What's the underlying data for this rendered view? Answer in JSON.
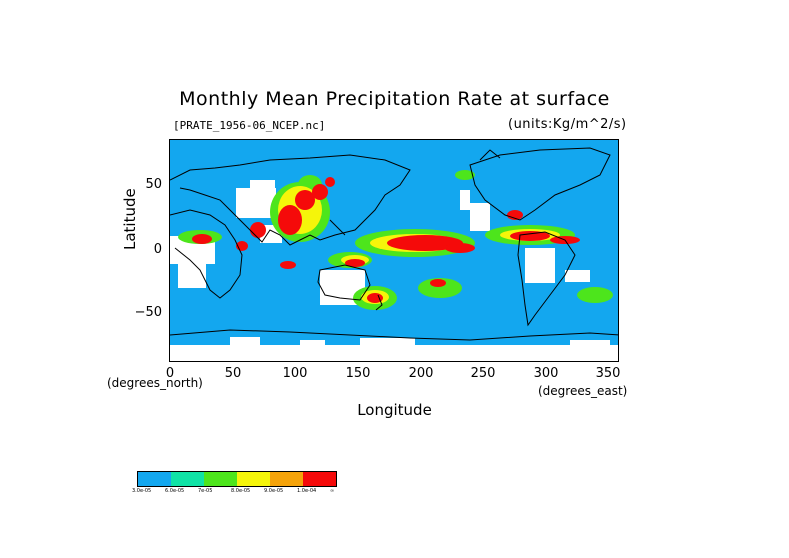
{
  "title": "Monthly Mean Precipitation Rate at surface",
  "file_label": "[PRATE_1956-06_NCEP.nc]",
  "units_label": "(units:Kg/m^2/s)",
  "axes": {
    "ylabel": "Latitude",
    "xlabel": "Longitude",
    "y_unit": "(degrees_north)",
    "x_unit": "(degrees_east)",
    "y_ticks": [
      "50",
      "0",
      "−50"
    ],
    "x_ticks": [
      "0",
      "50",
      "100",
      "150",
      "200",
      "250",
      "300",
      "350"
    ],
    "lon_range": [
      0,
      360
    ],
    "lat_range": [
      -90,
      90
    ]
  },
  "colorbar": {
    "colors": [
      "#13a7ef",
      "#10e3a6",
      "#4de51c",
      "#f5f50a",
      "#f5a30a",
      "#f50a0a"
    ],
    "labels": [
      "3.0e-05",
      "6.0e-05",
      "7e-05",
      "8.0e-05",
      "9.0e-05",
      "1.0e-04",
      "∞"
    ]
  },
  "chart_data": {
    "type": "heatmap",
    "title": "Monthly Mean Precipitation Rate at surface",
    "xlabel": "Longitude",
    "ylabel": "Latitude",
    "xlim": [
      0,
      360
    ],
    "ylim": [
      -90,
      90
    ],
    "x_ticks": [
      0,
      50,
      100,
      150,
      200,
      250,
      300,
      350
    ],
    "y_ticks": [
      -50,
      0,
      50
    ],
    "levels": [
      "3.0e-05",
      "6.0e-05",
      "7e-05",
      "8.0e-05",
      "9.0e-05",
      "1.0e-04"
    ]
  }
}
